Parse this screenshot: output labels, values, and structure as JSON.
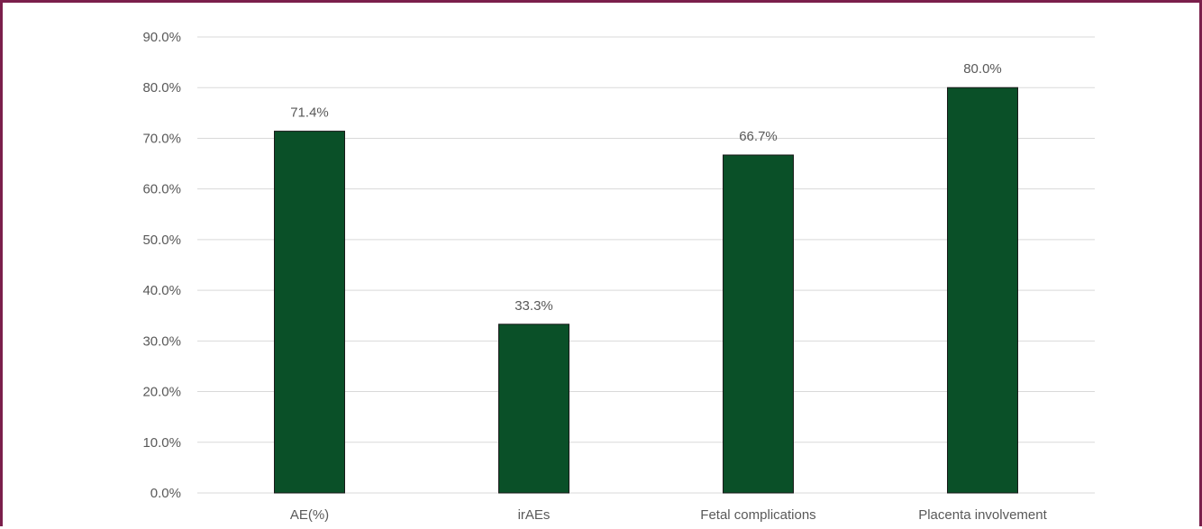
{
  "chart_data": {
    "type": "bar",
    "categories": [
      "AE(%)",
      "irAEs",
      "Fetal complications",
      "Placenta involvement"
    ],
    "values": [
      71.4,
      33.3,
      66.7,
      80.0
    ],
    "data_labels": [
      "71.4%",
      "33.3%",
      "66.7%",
      "80.0%"
    ],
    "ylim": [
      0,
      90
    ],
    "yticks": [
      0,
      10,
      20,
      30,
      40,
      50,
      60,
      70,
      80,
      90
    ],
    "ytick_labels": [
      "0.0%",
      "10.0%",
      "20.0%",
      "30.0%",
      "40.0%",
      "50.0%",
      "60.0%",
      "70.0%",
      "80.0%",
      "90.0%"
    ],
    "title": "",
    "xlabel": "",
    "ylabel": "",
    "grid": true,
    "legend": "none",
    "colors": {
      "bar": "#0a5028",
      "bar_edge": "#1a1a1a",
      "frame": "#7b1f4b"
    }
  }
}
